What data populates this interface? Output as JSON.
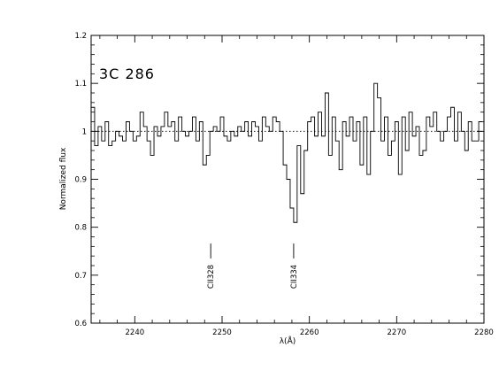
{
  "chart_data": {
    "type": "line",
    "title": "",
    "object_label": "3C  286",
    "xlabel": "λ(Å)",
    "ylabel": "Normalized flux",
    "xlim": [
      2235,
      2280
    ],
    "ylim": [
      0.6,
      1.2
    ],
    "x_ticks": [
      2240,
      2250,
      2260,
      2270,
      2280
    ],
    "y_ticks": [
      0.6,
      0.7,
      0.8,
      0.9,
      1.0,
      1.1,
      1.2
    ],
    "y_tick_labels": [
      "0.6",
      "0.7",
      "0.8",
      "0.9",
      "1",
      "1.1",
      "1.2"
    ],
    "reference_level": 1.0,
    "grid": false,
    "series": [
      {
        "style": "histogram-step",
        "x": [
          2235.0,
          2235.4,
          2235.8,
          2236.2,
          2236.6,
          2237.0,
          2237.4,
          2237.8,
          2238.2,
          2238.6,
          2239.0,
          2239.4,
          2239.8,
          2240.2,
          2240.6,
          2241.0,
          2241.4,
          2241.8,
          2242.2,
          2242.6,
          2243.0,
          2243.4,
          2243.8,
          2244.2,
          2244.6,
          2245.0,
          2245.4,
          2245.8,
          2246.2,
          2246.6,
          2247.0,
          2247.4,
          2247.8,
          2248.2,
          2248.6,
          2249.0,
          2249.4,
          2249.8,
          2250.2,
          2250.6,
          2251.0,
          2251.4,
          2251.8,
          2252.2,
          2252.6,
          2253.0,
          2253.4,
          2253.8,
          2254.2,
          2254.6,
          2255.0,
          2255.4,
          2255.8,
          2256.2,
          2256.6,
          2257.0,
          2257.4,
          2257.8,
          2258.2,
          2258.6,
          2259.0,
          2259.4,
          2259.8,
          2260.2,
          2260.6,
          2261.0,
          2261.4,
          2261.8,
          2262.2,
          2262.6,
          2263.0,
          2263.4,
          2263.8,
          2264.2,
          2264.6,
          2265.0,
          2265.4,
          2265.8,
          2266.2,
          2266.6,
          2267.0,
          2267.4,
          2267.8,
          2268.2,
          2268.6,
          2269.0,
          2269.4,
          2269.8,
          2270.2,
          2270.6,
          2271.0,
          2271.4,
          2271.8,
          2272.2,
          2272.6,
          2273.0,
          2273.4,
          2273.8,
          2274.2,
          2274.6,
          2275.0,
          2275.4,
          2275.8,
          2276.2,
          2276.6,
          2277.0,
          2277.4,
          2277.8,
          2278.2,
          2278.6,
          2279.0,
          2279.4
        ],
        "y": [
          1.05,
          0.97,
          1.01,
          0.98,
          1.02,
          0.97,
          0.98,
          1.0,
          0.99,
          0.98,
          1.02,
          1.0,
          0.98,
          0.99,
          1.04,
          1.01,
          0.98,
          0.95,
          1.01,
          0.99,
          1.01,
          1.04,
          1.01,
          1.02,
          0.98,
          1.03,
          1.0,
          0.99,
          1.0,
          1.03,
          0.98,
          1.02,
          0.93,
          0.95,
          1.0,
          1.01,
          1.0,
          1.03,
          0.99,
          0.98,
          1.0,
          0.99,
          1.01,
          1.0,
          1.02,
          0.99,
          1.02,
          1.01,
          0.98,
          1.03,
          1.01,
          1.0,
          1.03,
          1.02,
          1.0,
          0.93,
          0.9,
          0.84,
          0.81,
          0.97,
          0.87,
          0.96,
          1.02,
          1.03,
          0.99,
          1.04,
          0.99,
          1.08,
          0.95,
          1.03,
          0.98,
          0.92,
          1.02,
          0.99,
          1.03,
          0.98,
          1.02,
          0.93,
          1.03,
          0.91,
          1.0,
          1.1,
          1.07,
          0.98,
          1.03,
          0.95,
          0.98,
          1.02,
          0.91,
          1.03,
          0.96,
          1.04,
          0.99,
          1.01,
          0.95,
          0.96,
          1.03,
          1.01,
          1.04,
          1.0,
          0.98,
          1.0,
          1.03,
          1.05,
          0.98,
          1.04,
          1.0,
          0.96,
          1.02,
          0.98,
          0.98,
          1.02
        ]
      }
    ],
    "annotations": [
      {
        "label": "CII328",
        "x": 2248.7
      },
      {
        "label": "CII334",
        "x": 2258.2
      }
    ]
  }
}
